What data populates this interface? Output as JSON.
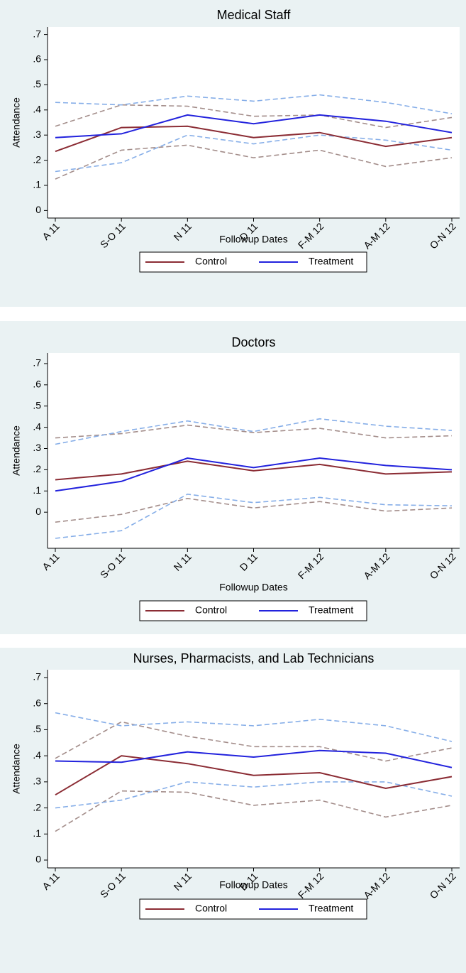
{
  "chart_data": [
    {
      "type": "line",
      "title": "Medical Staff",
      "x_label": "Followup Dates",
      "y_label": "Attendance",
      "categories": [
        "A 11",
        "S-O 11",
        "N 11",
        "D 11",
        "F-M 12",
        "A-M 12",
        "O-N 12"
      ],
      "ylim": [
        -0.03,
        0.73
      ],
      "yticks": [
        0,
        {
          "value": 0.1,
          "label": ".1"
        },
        {
          "value": 0.2,
          "label": ".2"
        },
        {
          "value": 0.3,
          "label": ".3"
        },
        {
          "value": 0.4,
          "label": ".4"
        },
        {
          "value": 0.5,
          "label": ".5"
        },
        {
          "value": 0.6,
          "label": ".6"
        },
        {
          "value": 0.7,
          "label": ".7"
        }
      ],
      "series": [
        {
          "name": "Control",
          "color": "#8b2c34",
          "values": [
            0.235,
            0.33,
            0.335,
            0.29,
            0.31,
            0.255,
            0.29
          ],
          "ci_color": "#a38d8a",
          "ci_upper": [
            0.335,
            0.42,
            0.415,
            0.375,
            0.38,
            0.33,
            0.37
          ],
          "ci_lower": [
            0.125,
            0.24,
            0.26,
            0.21,
            0.24,
            0.175,
            0.21
          ]
        },
        {
          "name": "Treatment",
          "color": "#2222dd",
          "values": [
            0.29,
            0.305,
            0.38,
            0.345,
            0.38,
            0.355,
            0.31
          ],
          "ci_color": "#86aee8",
          "ci_upper": [
            0.43,
            0.42,
            0.455,
            0.435,
            0.46,
            0.43,
            0.385
          ],
          "ci_lower": [
            0.155,
            0.19,
            0.3,
            0.265,
            0.3,
            0.28,
            0.24
          ]
        }
      ]
    },
    {
      "type": "line",
      "title": "Doctors",
      "x_label": "Followup Dates",
      "y_label": "Attendance",
      "categories": [
        "A 11",
        "S-O 11",
        "N 11",
        "D 11",
        "F-M 12",
        "A-M 12",
        "O-N 12"
      ],
      "ylim": [
        -0.17,
        0.75
      ],
      "yticks": [
        0,
        {
          "value": 0.1,
          "label": ".1"
        },
        {
          "value": 0.2,
          "label": ".2"
        },
        {
          "value": 0.3,
          "label": ".3"
        },
        {
          "value": 0.4,
          "label": ".4"
        },
        {
          "value": 0.5,
          "label": ".5"
        },
        {
          "value": 0.6,
          "label": ".6"
        },
        {
          "value": 0.7,
          "label": ".7"
        }
      ],
      "series": [
        {
          "name": "Control",
          "color": "#8b2c34",
          "values": [
            0.153,
            0.18,
            0.24,
            0.195,
            0.225,
            0.18,
            0.19
          ],
          "ci_color": "#a38d8a",
          "ci_upper": [
            0.35,
            0.37,
            0.41,
            0.375,
            0.395,
            0.35,
            0.36
          ],
          "ci_lower": [
            -0.047,
            -0.01,
            0.065,
            0.02,
            0.05,
            0.005,
            0.02
          ]
        },
        {
          "name": "Treatment",
          "color": "#2222dd",
          "values": [
            0.1,
            0.145,
            0.255,
            0.21,
            0.255,
            0.22,
            0.2
          ],
          "ci_color": "#86aee8",
          "ci_upper": [
            0.32,
            0.38,
            0.43,
            0.38,
            0.44,
            0.405,
            0.385
          ],
          "ci_lower": [
            -0.123,
            -0.087,
            0.085,
            0.045,
            0.07,
            0.035,
            0.03
          ]
        }
      ]
    },
    {
      "type": "line",
      "title": "Nurses, Pharmacists, and Lab Technicians",
      "x_label": "Followup Dates",
      "y_label": "Attendance",
      "categories": [
        "A 11",
        "S-O 11",
        "N 11",
        "D 11",
        "F-M 12",
        "A-M 12",
        "O-N 12"
      ],
      "ylim": [
        -0.03,
        0.73
      ],
      "yticks": [
        0,
        {
          "value": 0.1,
          "label": ".1"
        },
        {
          "value": 0.2,
          "label": ".2"
        },
        {
          "value": 0.3,
          "label": ".3"
        },
        {
          "value": 0.4,
          "label": ".4"
        },
        {
          "value": 0.5,
          "label": ".5"
        },
        {
          "value": 0.6,
          "label": ".6"
        },
        {
          "value": 0.7,
          "label": ".7"
        }
      ],
      "series": [
        {
          "name": "Control",
          "color": "#8b2c34",
          "values": [
            0.25,
            0.4,
            0.37,
            0.325,
            0.335,
            0.275,
            0.32
          ],
          "ci_color": "#a38d8a",
          "ci_upper": [
            0.39,
            0.53,
            0.475,
            0.435,
            0.435,
            0.38,
            0.43
          ],
          "ci_lower": [
            0.11,
            0.265,
            0.26,
            0.21,
            0.23,
            0.165,
            0.21
          ]
        },
        {
          "name": "Treatment",
          "color": "#2222dd",
          "values": [
            0.38,
            0.375,
            0.415,
            0.395,
            0.42,
            0.41,
            0.355
          ],
          "ci_color": "#86aee8",
          "ci_upper": [
            0.565,
            0.515,
            0.53,
            0.515,
            0.54,
            0.515,
            0.455
          ],
          "ci_lower": [
            0.2,
            0.23,
            0.3,
            0.28,
            0.3,
            0.3,
            0.245
          ]
        }
      ]
    }
  ]
}
